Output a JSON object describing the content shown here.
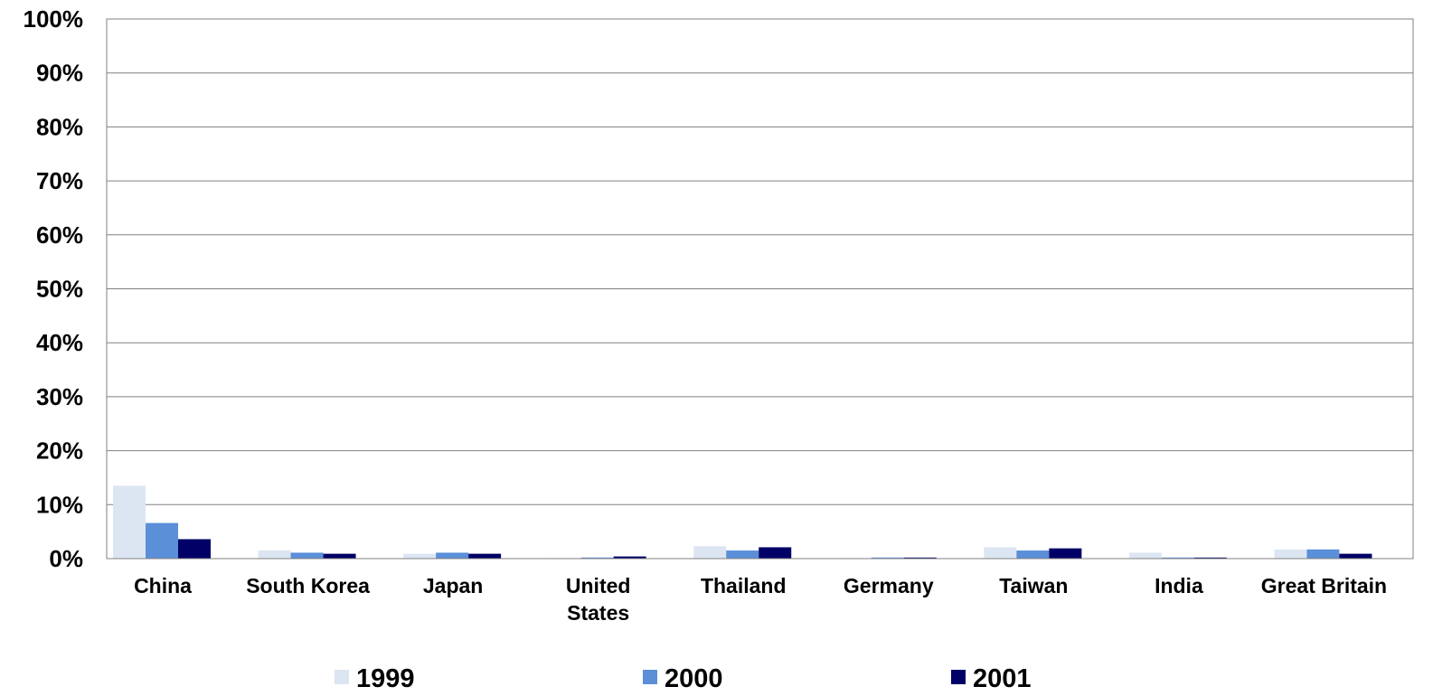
{
  "chart_data": {
    "type": "bar",
    "categories": [
      "China",
      "South Korea",
      "Japan",
      "United States",
      "Thailand",
      "Germany",
      "Taiwan",
      "India",
      "Great Britain"
    ],
    "series": [
      {
        "name": "1999",
        "color": "#dce6f2",
        "values": [
          13.5,
          1.5,
          0.9,
          0.1,
          2.3,
          0.1,
          2.1,
          1.1,
          1.7
        ]
      },
      {
        "name": "2000",
        "color": "#5b8fd8",
        "values": [
          6.6,
          1.1,
          1.1,
          0.2,
          1.5,
          0.2,
          1.5,
          0.2,
          1.7
        ]
      },
      {
        "name": "2001",
        "color": "#000066",
        "values": [
          3.6,
          0.9,
          0.9,
          0.4,
          2.1,
          0.2,
          1.9,
          0.2,
          0.9
        ]
      }
    ],
    "yticks": [
      "0%",
      "10%",
      "20%",
      "30%",
      "40%",
      "50%",
      "60%",
      "70%",
      "80%",
      "90%",
      "100%"
    ],
    "ylim": [
      0,
      100
    ],
    "grid": true,
    "legend_position": "bottom"
  }
}
